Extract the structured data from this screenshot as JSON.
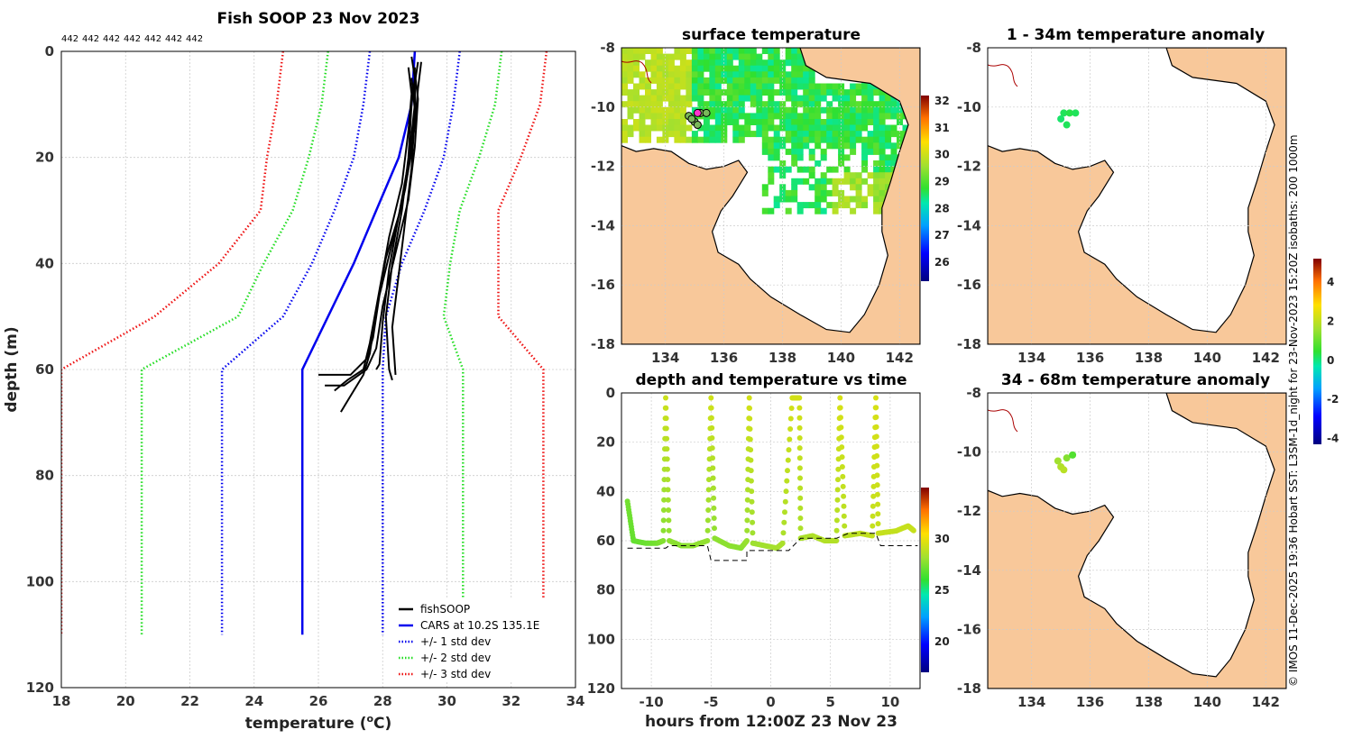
{
  "colors": {
    "land": "#f8c89a",
    "cars": "#0000ee",
    "std1": "#0000ee",
    "std2": "#22dd22",
    "std3": "#ee1111",
    "fish": "#000000",
    "grid": "#cccccc"
  },
  "chart_data": [
    {
      "id": "profile",
      "type": "line",
      "title": "Fish SOOP 23 Nov 2023",
      "header_ids": [
        "442",
        "442",
        "442",
        "442",
        "442",
        "442",
        "442"
      ],
      "xlabel_main": "temperature (",
      "xlabel_sup": "o",
      "xlabel_end": "C)",
      "ylabel": "depth (m)",
      "xlim": [
        18,
        34
      ],
      "ylim": [
        0,
        120
      ],
      "xticks": [
        18,
        20,
        22,
        24,
        26,
        28,
        30,
        32,
        34
      ],
      "yticks": [
        0,
        20,
        40,
        60,
        80,
        100,
        120
      ],
      "legend": [
        {
          "key": "fish",
          "label": "fishSOOP",
          "dash": false
        },
        {
          "key": "cars",
          "label": "CARS at 10.2S 135.1E",
          "dash": false
        },
        {
          "key": "std1",
          "label": "+/- 1 std dev",
          "dash": true
        },
        {
          "key": "std2",
          "label": "+/- 2 std dev",
          "dash": true
        },
        {
          "key": "std3",
          "label": "+/- 3 std dev",
          "dash": true
        }
      ],
      "series": [
        {
          "name": "CARS at 10.2S 135.1E",
          "key": "cars",
          "dash": false,
          "points": [
            [
              29.0,
              0
            ],
            [
              28.9,
              10
            ],
            [
              28.5,
              20
            ],
            [
              27.8,
              30
            ],
            [
              27.1,
              40
            ],
            [
              26.3,
              50
            ],
            [
              25.5,
              60
            ],
            [
              25.5,
              110
            ]
          ]
        },
        {
          "name": "-1 std",
          "key": "std1",
          "dash": true,
          "points": [
            [
              27.6,
              0
            ],
            [
              27.4,
              10
            ],
            [
              27.1,
              20
            ],
            [
              26.5,
              30
            ],
            [
              25.8,
              40
            ],
            [
              24.9,
              50
            ],
            [
              23.0,
              60
            ],
            [
              23.0,
              110
            ]
          ]
        },
        {
          "name": "+1 std",
          "key": "std1",
          "dash": true,
          "points": [
            [
              30.4,
              0
            ],
            [
              30.2,
              10
            ],
            [
              29.9,
              20
            ],
            [
              29.3,
              30
            ],
            [
              28.6,
              40
            ],
            [
              28.1,
              50
            ],
            [
              28.0,
              60
            ],
            [
              28.0,
              110
            ]
          ]
        },
        {
          "name": "-2 std",
          "key": "std2",
          "dash": true,
          "points": [
            [
              26.3,
              0
            ],
            [
              26.1,
              10
            ],
            [
              25.7,
              20
            ],
            [
              25.2,
              30
            ],
            [
              24.3,
              40
            ],
            [
              23.5,
              50
            ],
            [
              20.5,
              60
            ],
            [
              20.5,
              110
            ]
          ]
        },
        {
          "name": "+2 std",
          "key": "std2",
          "dash": true,
          "points": [
            [
              31.7,
              0
            ],
            [
              31.5,
              10
            ],
            [
              31.0,
              20
            ],
            [
              30.4,
              30
            ],
            [
              30.1,
              40
            ],
            [
              29.9,
              50
            ],
            [
              30.5,
              60
            ],
            [
              30.5,
              110
            ]
          ]
        },
        {
          "name": "-3 std",
          "key": "std3",
          "dash": true,
          "points": [
            [
              24.9,
              0
            ],
            [
              24.7,
              10
            ],
            [
              24.4,
              20
            ],
            [
              24.2,
              30
            ],
            [
              22.9,
              40
            ],
            [
              20.9,
              50
            ],
            [
              18.0,
              60
            ],
            [
              18.0,
              110
            ]
          ]
        },
        {
          "name": "+3 std",
          "key": "std3",
          "dash": true,
          "points": [
            [
              33.1,
              0
            ],
            [
              32.9,
              10
            ],
            [
              32.3,
              20
            ],
            [
              31.6,
              30
            ],
            [
              31.6,
              40
            ],
            [
              31.6,
              50
            ],
            [
              33.0,
              60
            ],
            [
              33.0,
              110
            ]
          ]
        }
      ],
      "fish_profiles": [
        [
          [
            28.9,
            1
          ],
          [
            29.0,
            5
          ],
          [
            28.9,
            10
          ],
          [
            28.8,
            20
          ],
          [
            28.6,
            30
          ],
          [
            28.3,
            40
          ],
          [
            28.1,
            50
          ],
          [
            28.2,
            60
          ],
          [
            28.3,
            62
          ]
        ],
        [
          [
            29.1,
            2
          ],
          [
            29.0,
            6
          ],
          [
            29.0,
            12
          ],
          [
            28.9,
            22
          ],
          [
            28.7,
            32
          ],
          [
            28.5,
            42
          ],
          [
            28.3,
            52
          ],
          [
            28.4,
            61
          ]
        ],
        [
          [
            28.8,
            3
          ],
          [
            28.9,
            8
          ],
          [
            28.8,
            15
          ],
          [
            28.6,
            25
          ],
          [
            28.2,
            35
          ],
          [
            27.9,
            45
          ],
          [
            27.6,
            55
          ],
          [
            27.4,
            60
          ],
          [
            26.9,
            62
          ],
          [
            26.5,
            64
          ]
        ],
        [
          [
            29.0,
            4
          ],
          [
            29.1,
            9
          ],
          [
            29.0,
            18
          ],
          [
            28.8,
            28
          ],
          [
            28.4,
            38
          ],
          [
            28.0,
            48
          ],
          [
            27.8,
            56
          ],
          [
            27.5,
            60
          ],
          [
            26.8,
            63
          ],
          [
            26.2,
            63
          ]
        ],
        [
          [
            29.2,
            2
          ],
          [
            29.1,
            7
          ],
          [
            29.0,
            14
          ],
          [
            28.7,
            26
          ],
          [
            28.3,
            36
          ],
          [
            27.9,
            46
          ],
          [
            27.7,
            54
          ],
          [
            27.5,
            58
          ],
          [
            27.0,
            61
          ],
          [
            26.0,
            61
          ]
        ],
        [
          [
            28.9,
            5
          ],
          [
            29.0,
            11
          ],
          [
            28.9,
            19
          ],
          [
            28.6,
            29
          ],
          [
            28.1,
            39
          ],
          [
            27.8,
            49
          ],
          [
            27.6,
            57
          ],
          [
            27.4,
            61
          ],
          [
            27.0,
            65
          ],
          [
            26.7,
            68
          ]
        ],
        [
          [
            29.0,
            3
          ],
          [
            29.0,
            10
          ],
          [
            28.8,
            21
          ],
          [
            28.5,
            31
          ],
          [
            28.2,
            41
          ],
          [
            28.0,
            51
          ],
          [
            27.9,
            59
          ],
          [
            27.8,
            60
          ]
        ]
      ]
    },
    {
      "id": "timeseries",
      "type": "scatter",
      "title": "depth and temperature vs time",
      "xlabel": "hours from 12:00Z 23 Nov 23",
      "xlim": [
        -12.5,
        12.5
      ],
      "ylim": [
        0,
        120
      ],
      "xticks": [
        -10,
        -5,
        0,
        5,
        10
      ],
      "yticks": [
        0,
        20,
        40,
        60,
        80,
        100,
        120
      ],
      "colorbar": {
        "min": 17,
        "max": 35,
        "ticks": [
          20,
          25,
          30
        ]
      },
      "series": [
        {
          "name": "track",
          "points": [
            [
              -12.0,
              44,
              27.3
            ],
            [
              -11.5,
              60,
              27.0
            ],
            [
              -10.5,
              61,
              27.1
            ],
            [
              -9.5,
              61,
              27.3
            ],
            [
              -9.0,
              60,
              27.6
            ],
            [
              -8.8,
              2,
              29.2
            ],
            [
              -8.5,
              60,
              27.8
            ],
            [
              -7.5,
              62,
              27.7
            ],
            [
              -6.5,
              62,
              27.8
            ],
            [
              -5.3,
              60,
              27.9
            ],
            [
              -5.0,
              2,
              29.3
            ],
            [
              -4.7,
              59,
              27.8
            ],
            [
              -3.5,
              62,
              27.8
            ],
            [
              -2.5,
              63,
              27.7
            ],
            [
              -2.0,
              60,
              28.0
            ],
            [
              -1.8,
              2,
              29.4
            ],
            [
              -1.5,
              61,
              28.1
            ],
            [
              -0.5,
              62,
              28.2
            ],
            [
              0.5,
              63,
              28.3
            ],
            [
              1.0,
              61,
              28.4
            ],
            [
              1.8,
              2,
              29.4
            ],
            [
              2.4,
              2,
              29.4
            ],
            [
              2.5,
              59,
              28.4
            ],
            [
              3.5,
              58,
              28.5
            ],
            [
              4.5,
              60,
              28.6
            ],
            [
              5.5,
              60,
              28.6
            ],
            [
              5.8,
              2,
              29.5
            ],
            [
              6.2,
              58,
              28.7
            ],
            [
              7.5,
              57,
              28.9
            ],
            [
              8.5,
              58,
              29.0
            ],
            [
              8.8,
              2,
              29.5
            ],
            [
              9.0,
              57,
              29.1
            ],
            [
              10.5,
              56,
              29.0
            ],
            [
              11.5,
              54,
              29.1
            ],
            [
              12.0,
              56,
              29.1
            ]
          ]
        },
        {
          "name": "bottom",
          "points": [
            [
              -12,
              63
            ],
            [
              -8.8,
              63
            ],
            [
              -8.5,
              62
            ],
            [
              -5.3,
              62
            ],
            [
              -5,
              68
            ],
            [
              -2,
              68
            ],
            [
              -2,
              64
            ],
            [
              1.5,
              64
            ],
            [
              2.5,
              59
            ],
            [
              5.5,
              59
            ],
            [
              6.5,
              57
            ],
            [
              8.8,
              57
            ],
            [
              9.2,
              62
            ],
            [
              12.3,
              62
            ]
          ]
        }
      ]
    },
    {
      "id": "sst",
      "type": "heatmap",
      "title": "surface temperature",
      "xlim": [
        132.5,
        142.7
      ],
      "ylim": [
        -18,
        -8
      ],
      "xticks": [
        134,
        136,
        138,
        140,
        142
      ],
      "yticks": [
        -8,
        -10,
        -12,
        -14,
        -16,
        -18
      ],
      "colorbar": {
        "min": 25.3,
        "max": 32.2,
        "ticks": [
          26,
          27,
          28,
          29,
          30,
          31,
          32
        ]
      },
      "fish_positions": [
        [
          134.8,
          -10.3
        ],
        [
          135.0,
          -10.5
        ],
        [
          135.2,
          -10.2
        ],
        [
          135.4,
          -10.2
        ],
        [
          135.1,
          -10.6
        ],
        [
          134.9,
          -10.4
        ]
      ]
    },
    {
      "id": "anom1",
      "type": "heatmap",
      "title": "1 - 34m temperature anomaly",
      "xlim": [
        132.5,
        142.7
      ],
      "ylim": [
        -18,
        -8
      ],
      "xticks": [
        134,
        136,
        138,
        140,
        142
      ],
      "yticks": [
        -8,
        -10,
        -12,
        -14,
        -16,
        -18
      ],
      "anomaly_points": [
        [
          135.1,
          -10.2,
          0.2
        ],
        [
          135.3,
          -10.2,
          0.3
        ],
        [
          135.5,
          -10.2,
          0.2
        ],
        [
          135.0,
          -10.4,
          0.1
        ],
        [
          135.2,
          -10.6,
          0.2
        ]
      ]
    },
    {
      "id": "anom2",
      "type": "heatmap",
      "title": "34 - 68m temperature anomaly",
      "xlim": [
        132.5,
        142.7
      ],
      "ylim": [
        -18,
        -8
      ],
      "xticks": [
        134,
        136,
        138,
        140,
        142
      ],
      "yticks": [
        -8,
        -10,
        -12,
        -14,
        -16,
        -18
      ],
      "anomaly_points": [
        [
          134.9,
          -10.3,
          1.6
        ],
        [
          135.2,
          -10.2,
          1.3
        ],
        [
          135.4,
          -10.1,
          0.8
        ],
        [
          135.0,
          -10.5,
          1.8
        ],
        [
          135.1,
          -10.6,
          1.9
        ]
      ]
    }
  ],
  "anomaly_colorbar": {
    "min": -4.3,
    "max": 5.2,
    "ticks": [
      -4,
      -2,
      0,
      2,
      4
    ]
  },
  "side_text": "© IMOS 11-Dec-2025 19:36 Hobart SST: L3SM-1d_night for 23-Nov-2023 15:20Z isobaths: 200  1000m"
}
